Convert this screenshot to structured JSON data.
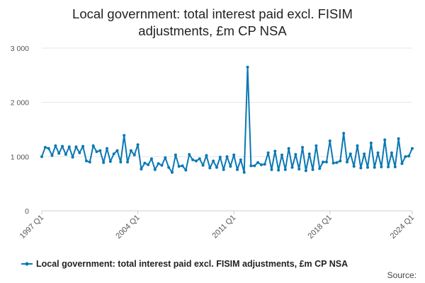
{
  "title_lines": [
    "Local government: total interest paid excl. FISIM",
    "adjustments, £m CP NSA"
  ],
  "source_label": "Source:",
  "colors": {
    "series": "#0a78b4",
    "grid": "#e6e6e6",
    "axis": "#cccccc"
  },
  "chart_data": {
    "type": "line",
    "title": "Local government: total interest paid excl. FISIM adjustments, £m CP NSA",
    "ylim": [
      0,
      3000
    ],
    "y_ticks": [
      0,
      1000,
      2000,
      3000
    ],
    "y_tick_labels": [
      "0",
      "1 000",
      "2 000",
      "3 000"
    ],
    "x_start": "1997 Q1",
    "x_tick_labels": [
      "1997 Q1",
      "2004 Q1",
      "2011 Q1",
      "2018 Q1",
      "2024 Q1"
    ],
    "x_tick_indices": [
      0,
      28,
      56,
      84,
      108
    ],
    "grid": "horizontal",
    "legend_position": "bottom",
    "series": [
      {
        "name": "Local government: total interest paid excl. FISIM adjustments, £m CP NSA",
        "values": [
          1000,
          1170,
          1150,
          1020,
          1200,
          1060,
          1190,
          1040,
          1180,
          990,
          1180,
          1070,
          1190,
          920,
          900,
          1200,
          1090,
          1110,
          890,
          1150,
          910,
          1050,
          1110,
          900,
          1390,
          900,
          1110,
          1030,
          1220,
          770,
          880,
          850,
          960,
          760,
          870,
          840,
          980,
          800,
          710,
          1030,
          820,
          830,
          750,
          1040,
          940,
          920,
          960,
          840,
          1020,
          790,
          920,
          800,
          990,
          760,
          1000,
          820,
          1030,
          760,
          940,
          710,
          2650,
          830,
          830,
          890,
          850,
          860,
          1070,
          760,
          1100,
          750,
          1030,
          760,
          1150,
          800,
          1040,
          770,
          1170,
          740,
          1050,
          760,
          1200,
          780,
          900,
          900,
          1290,
          880,
          890,
          920,
          1430,
          900,
          1050,
          820,
          1200,
          790,
          1050,
          800,
          1250,
          800,
          1070,
          810,
          1310,
          810,
          1070,
          810,
          1330,
          870,
          1000,
          1010,
          1150
        ]
      }
    ]
  }
}
